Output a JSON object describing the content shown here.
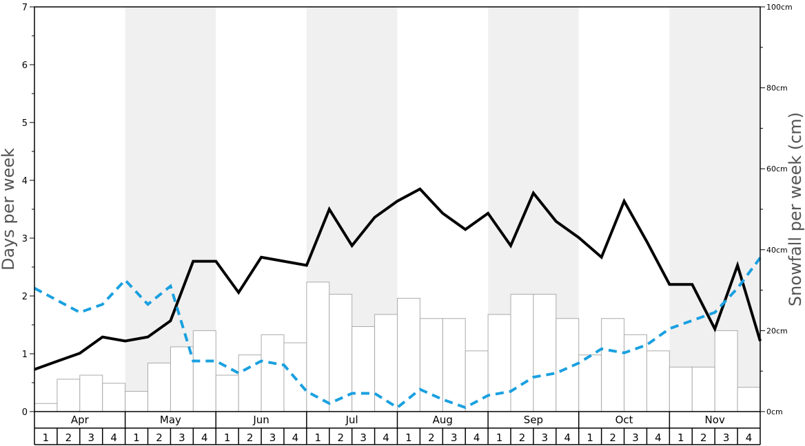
{
  "chart_data": {
    "type": "bar+line",
    "title": "",
    "ylabel_left": "Days per week",
    "ylabel_right": "Snowfall per week (cm)",
    "ylim_left": [
      0,
      7
    ],
    "ylim_right": [
      0,
      100
    ],
    "left_ticks": [
      "0",
      "1",
      "2",
      "3",
      "4",
      "5",
      "6",
      "7"
    ],
    "right_ticks": [
      "0cm",
      "20cm",
      "40cm",
      "60cm",
      "80cm",
      "100cm"
    ],
    "months": [
      "Apr",
      "May",
      "Jun",
      "Jul",
      "Aug",
      "Sep",
      "Oct",
      "Nov"
    ],
    "weeks": [
      "1",
      "2",
      "3",
      "4"
    ],
    "series": [
      {
        "name": "",
        "kind": "bar",
        "axis": "right",
        "values": [
          2,
          8,
          9,
          7,
          5,
          12,
          16,
          20,
          9,
          14,
          19,
          17,
          32,
          29,
          21,
          24,
          28,
          23,
          23,
          15,
          24,
          29,
          29,
          23,
          14,
          23,
          19,
          15,
          11,
          11,
          20,
          6
        ]
      },
      {
        "name": "",
        "kind": "line",
        "axis": "left",
        "style": "solid",
        "color": "#000000",
        "values": [
          0.73,
          0.87,
          1.01,
          1.29,
          1.22,
          1.29,
          1.57,
          2.6,
          2.6,
          2.06,
          2.67,
          2.6,
          2.53,
          3.5,
          2.87,
          3.36,
          3.64,
          3.85,
          3.43,
          3.15,
          3.43,
          2.87,
          3.78,
          3.29,
          3.01,
          2.67,
          3.64,
          2.94,
          2.2,
          2.2,
          1.43,
          2.53,
          1.22
        ]
      },
      {
        "name": "",
        "kind": "line",
        "axis": "right",
        "style": "dashed",
        "color": "#1aa0e0",
        "values": [
          30.5,
          27.5,
          24.5,
          26.5,
          32.5,
          26.5,
          31,
          12.5,
          12.5,
          9.5,
          12.5,
          11.5,
          5,
          2,
          4.5,
          4.5,
          1,
          5.5,
          3,
          1,
          4,
          5,
          8.5,
          9.5,
          12,
          15.5,
          14.5,
          16.5,
          20.5,
          22.5,
          24.5,
          30.5,
          38
        ]
      }
    ],
    "colors": {
      "band_shade": "#f0f0f0",
      "bar_fill": "#ffffff",
      "bar_stroke": "#aaaaaa",
      "frame": "#000000"
    }
  }
}
